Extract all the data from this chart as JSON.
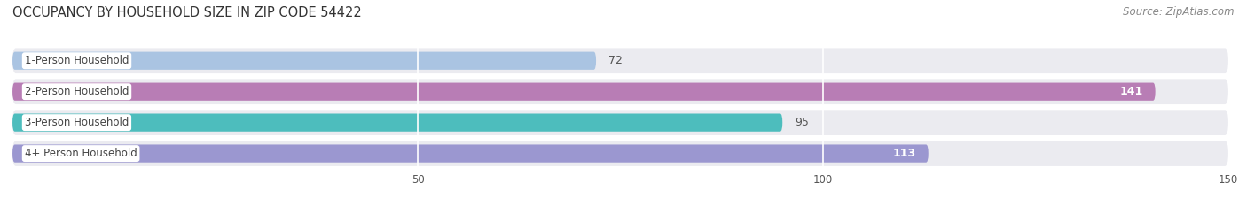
{
  "title": "OCCUPANCY BY HOUSEHOLD SIZE IN ZIP CODE 54422",
  "source": "Source: ZipAtlas.com",
  "categories": [
    "1-Person Household",
    "2-Person Household",
    "3-Person Household",
    "4+ Person Household"
  ],
  "values": [
    72,
    141,
    95,
    113
  ],
  "bar_colors": [
    "#aac4e2",
    "#b87db5",
    "#4dbdbd",
    "#9b97d0"
  ],
  "label_colors": [
    "#555555",
    "#ffffff",
    "#555555",
    "#ffffff"
  ],
  "value_inside": [
    false,
    true,
    false,
    true
  ],
  "xlim": [
    0,
    150
  ],
  "xticks": [
    50,
    100,
    150
  ],
  "fig_bg": "#ffffff",
  "row_bg": "#ebebf0",
  "title_fontsize": 10.5,
  "source_fontsize": 8.5,
  "bar_label_fontsize": 9,
  "category_fontsize": 8.5
}
